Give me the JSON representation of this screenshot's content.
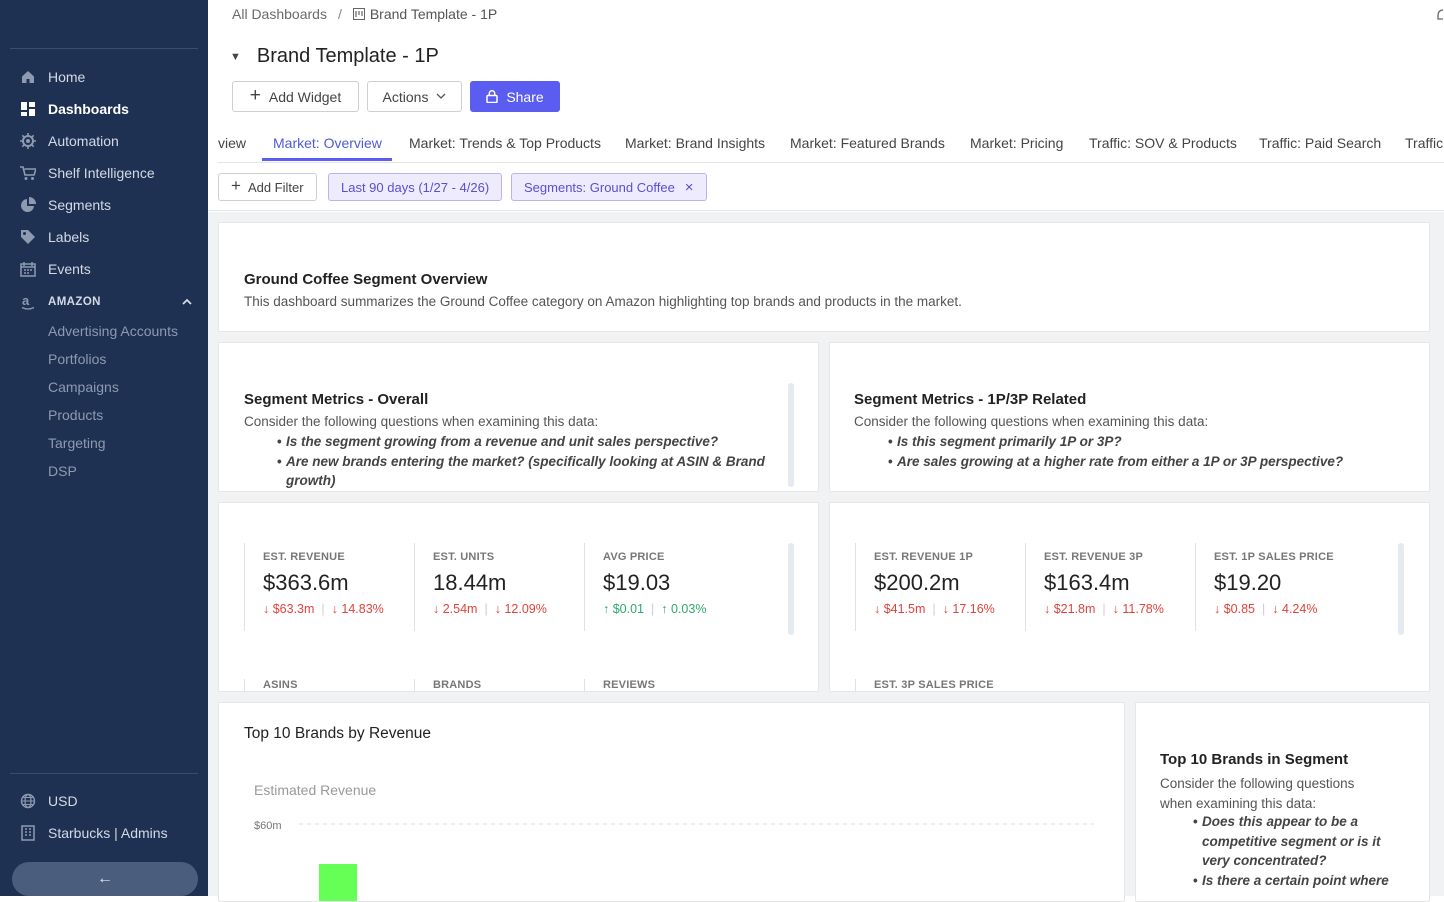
{
  "nav": {
    "items": [
      {
        "label": "Home",
        "icon": "home-icon"
      },
      {
        "label": "Dashboards",
        "icon": "dashboard-icon",
        "active": true
      },
      {
        "label": "Automation",
        "icon": "gear-icon"
      },
      {
        "label": "Shelf Intelligence",
        "icon": "cart-icon"
      },
      {
        "label": "Segments",
        "icon": "pie-icon"
      },
      {
        "label": "Labels",
        "icon": "tag-icon"
      },
      {
        "label": "Events",
        "icon": "calendar-icon"
      }
    ],
    "section": {
      "label": "AMAZON",
      "icon": "amazon-icon"
    },
    "sub_items": [
      "Advertising Accounts",
      "Portfolios",
      "Campaigns",
      "Products",
      "Targeting",
      "DSP"
    ],
    "bottom": [
      {
        "label": "USD",
        "icon": "globe-icon"
      },
      {
        "label": "Starbucks | Admins",
        "icon": "building-icon"
      }
    ],
    "collapse_icon": "arrow-left-icon",
    "collapse_glyph": "←"
  },
  "breadcrumb": {
    "root": "All Dashboards",
    "separator": "/",
    "current": "Brand Template - 1P"
  },
  "page": {
    "title": "Brand Template - 1P",
    "caret": "▼"
  },
  "toolbar": {
    "add_widget": "Add Widget",
    "add_glyph": "+",
    "actions": "Actions",
    "share": "Share"
  },
  "tabs": [
    "view",
    "Market: Overview",
    "Market: Trends & Top Products",
    "Market: Brand Insights",
    "Market: Featured Brands",
    "Market: Pricing",
    "Traffic: SOV & Products",
    "Traffic: Paid Search",
    "Traffic:"
  ],
  "active_tab": 1,
  "filters": {
    "add_filter": "Add Filter",
    "plus": "+",
    "date": "Last 90 days (1/27 - 4/26)",
    "segment": "Segments: Ground Coffee",
    "remove": "×"
  },
  "overview_card": {
    "title": "Ground Coffee Segment Overview",
    "text": "This dashboard summarizes the Ground Coffee category on Amazon highlighting top brands and products in the market."
  },
  "overall_card": {
    "title": "Segment Metrics - Overall",
    "intro": "Consider the following questions when examining this data:",
    "questions": [
      "Is the segment growing from a revenue and unit sales perspective?",
      "Are new brands entering the market? (specifically looking at ASIN & Brand growth)"
    ]
  },
  "related_card": {
    "title": "Segment Metrics - 1P/3P Related",
    "intro": "Consider the following questions when examining this data:",
    "questions": [
      "Is this segment primarily 1P or 3P?",
      "Are sales growing at a higher rate from either a 1P or 3P perspective?"
    ]
  },
  "metrics_left": [
    {
      "label": "EST. REVENUE",
      "value": "$363.6m",
      "changes": [
        "↓ $63.3m",
        "↓ 14.83%"
      ],
      "dir": "down"
    },
    {
      "label": "EST. UNITS",
      "value": "18.44m",
      "changes": [
        "↓ 2.54m",
        "↓ 12.09%"
      ],
      "dir": "down"
    },
    {
      "label": "AVG PRICE",
      "value": "$19.03",
      "changes": [
        "↑ $0.01",
        "↑ 0.03%"
      ],
      "dir": "up"
    }
  ],
  "metrics_left_next": [
    "ASINS",
    "BRANDS",
    "REVIEWS"
  ],
  "metrics_right": [
    {
      "label": "EST. REVENUE 1P",
      "value": "$200.2m",
      "changes": [
        "↓ $41.5m",
        "↓ 17.16%"
      ],
      "dir": "down"
    },
    {
      "label": "EST. REVENUE 3P",
      "value": "$163.4m",
      "changes": [
        "↓ $21.8m",
        "↓ 11.78%"
      ],
      "dir": "down"
    },
    {
      "label": "EST. 1P SALES PRICE",
      "value": "$19.20",
      "changes": [
        "↓ $0.85",
        "↓ 4.24%"
      ],
      "dir": "down"
    }
  ],
  "metrics_right_next": [
    "EST. 3P SALES PRICE"
  ],
  "top_brands_card": {
    "title": "Top 10 Brands by Revenue"
  },
  "chart_data": {
    "type": "bar",
    "title": "Estimated Revenue",
    "y_tick_labels": [
      "$60m"
    ],
    "ylim": [
      0,
      60
    ],
    "grid": true,
    "values": [
      60
    ],
    "color": "#66ff55"
  },
  "segment_brands_card": {
    "title": "Top 10 Brands in Segment",
    "intro": "Consider the following questions when examining this data:",
    "questions": [
      "Does this appear to be a competitive segment or is it very concentrated?",
      "Is there a certain point where"
    ]
  },
  "colors": {
    "sidebar": "#1e3152",
    "accent": "#5b5cf0",
    "down": "#e0433b",
    "up": "#2fa86a"
  }
}
